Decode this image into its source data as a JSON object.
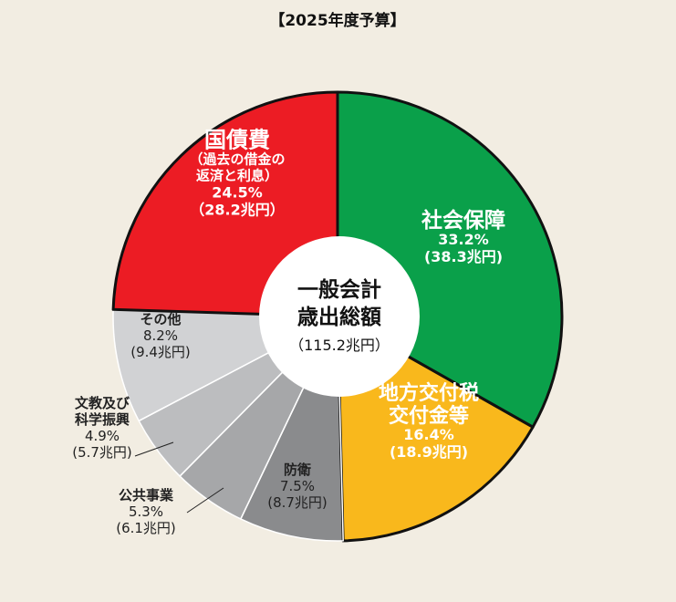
{
  "chart_data": {
    "type": "pie",
    "title": "【2025年度予算】",
    "center_label": {
      "lines": [
        "一般会計",
        "歳出総額"
      ],
      "total": "（115.2兆円）"
    },
    "slices": [
      {
        "name_lines": [
          "社会保障"
        ],
        "percent": 33.2,
        "percent_label": "33.2%",
        "amount": "(38.3兆円)",
        "color": "#0aa04a",
        "text_color": "#ffffff"
      },
      {
        "name_lines": [
          "地方交付税",
          "交付金等"
        ],
        "percent": 16.4,
        "percent_label": "16.4%",
        "amount": "(18.9兆円)",
        "color": "#f9b81c",
        "text_color": "#ffffff"
      },
      {
        "name_lines": [
          "防衛"
        ],
        "percent": 7.5,
        "percent_label": "7.5%",
        "amount": "(8.7兆円)",
        "color": "#8a8b8d",
        "text_color": "#222222"
      },
      {
        "name_lines": [
          "公共事業"
        ],
        "percent": 5.3,
        "percent_label": "5.3%",
        "amount": "(6.1兆円)",
        "color": "#a6a7a9",
        "text_color": "#222222"
      },
      {
        "name_lines": [
          "文教及び",
          "科学振興"
        ],
        "percent": 4.9,
        "percent_label": "4.9%",
        "amount": "(5.7兆円)",
        "color": "#bcbdbf",
        "text_color": "#222222"
      },
      {
        "name_lines": [
          "その他"
        ],
        "percent": 8.2,
        "percent_label": "8.2%",
        "amount": "(9.4兆円)",
        "color": "#d1d2d4",
        "text_color": "#222222"
      },
      {
        "name_lines": [
          "国債費"
        ],
        "sub_lines": [
          "（過去の借金の",
          "返済と利息）"
        ],
        "percent": 24.5,
        "percent_label": "24.5%",
        "amount": "（28.2兆円）",
        "color": "#ec1c24",
        "text_color": "#ffffff"
      }
    ]
  }
}
